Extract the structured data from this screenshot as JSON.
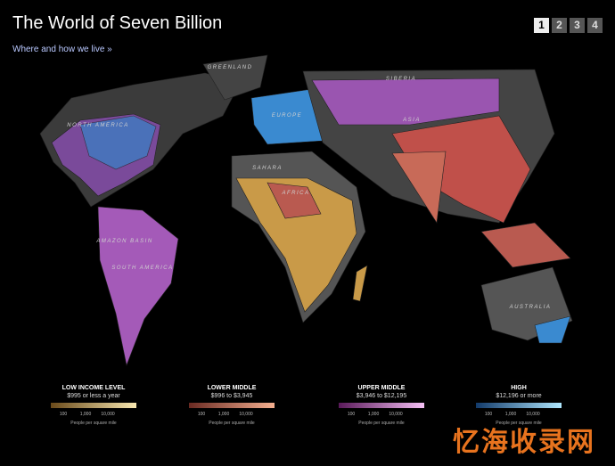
{
  "header": {
    "title": "The World of Seven Billion",
    "subtitle": "Where and how we live »"
  },
  "pagination": [
    "1",
    "2",
    "3",
    "4"
  ],
  "map_labels": [
    "GREENLAND",
    "SIBERIA",
    "NORTH AMERICA",
    "EUROPE",
    "ASIA",
    "SAHARA",
    "AFRICA",
    "AMAZON BASIN",
    "SOUTH AMERICA",
    "AUSTRALIA"
  ],
  "legend": [
    {
      "title": "LOW INCOME LEVEL",
      "range": "$995 or less a year",
      "ticks": [
        "100",
        "1,000",
        "10,000"
      ],
      "caption": "People per square mile"
    },
    {
      "title": "LOWER MIDDLE",
      "range": "$996 to $3,945",
      "ticks": [
        "100",
        "1,000",
        "10,000"
      ],
      "caption": "People per square mile"
    },
    {
      "title": "UPPER MIDDLE",
      "range": "$3,946 to $12,195",
      "ticks": [
        "100",
        "1,000",
        "10,000"
      ],
      "caption": "People per square mile"
    },
    {
      "title": "HIGH",
      "range": "$12,196 or more",
      "ticks": [
        "100",
        "1,000",
        "10,000"
      ],
      "caption": "People per square mile"
    }
  ],
  "watermark": "忆海收录网"
}
